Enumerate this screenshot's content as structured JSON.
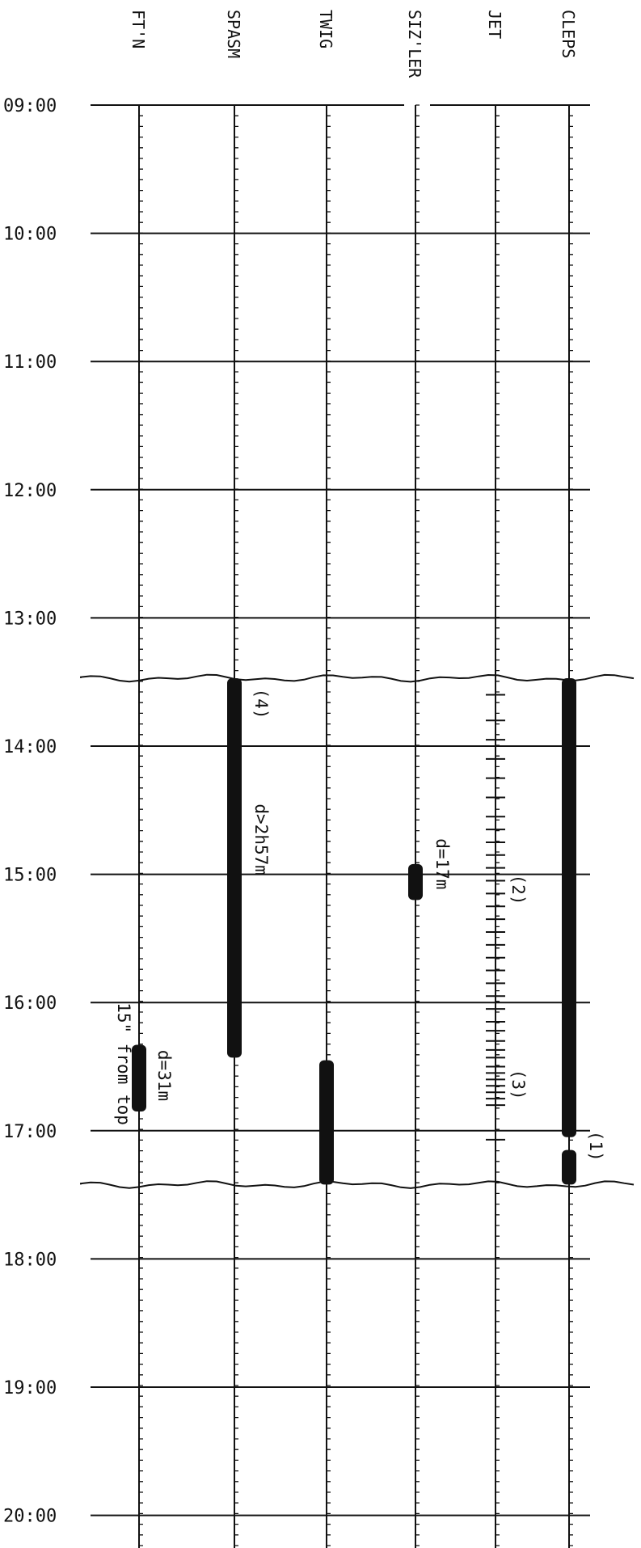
{
  "chart_data": {
    "type": "timeline",
    "time_axis": {
      "labels": [
        "09:00",
        "10:00",
        "11:00",
        "12:00",
        "13:00",
        "14:00",
        "15:00",
        "16:00",
        "17:00",
        "18:00",
        "19:00",
        "20:00"
      ],
      "start_hour": 9,
      "end_hour": 20
    },
    "columns": [
      {
        "id": "ftn",
        "label": "FT'N"
      },
      {
        "id": "spasm",
        "label": "SPASM"
      },
      {
        "id": "twig",
        "label": "TWIG"
      },
      {
        "id": "sizler",
        "label": "SIZ'LER"
      },
      {
        "id": "jet",
        "label": "JET"
      },
      {
        "id": "cleps",
        "label": "CLEPS"
      }
    ],
    "observation_window": {
      "start": 13.47,
      "end": 17.42
    },
    "events": [
      {
        "column": "ftn",
        "start": 16.33,
        "end": 16.85
      },
      {
        "column": "spasm",
        "start": 13.47,
        "end": 16.43
      },
      {
        "column": "twig",
        "start": 16.45,
        "end": 17.42
      },
      {
        "column": "sizler",
        "start": 14.92,
        "end": 15.2
      },
      {
        "column": "cleps",
        "start": 13.47,
        "end": 17.05
      },
      {
        "column": "cleps",
        "start": 17.15,
        "end": 17.42
      }
    ],
    "jet_ticks": [
      13.6,
      13.8,
      13.95,
      14.1,
      14.25,
      14.4,
      14.55,
      14.65,
      14.75,
      14.85,
      14.95,
      15.05,
      15.15,
      15.25,
      15.35,
      15.45,
      15.55,
      15.65,
      15.75,
      15.85,
      15.95,
      16.05,
      16.15,
      16.22,
      16.3,
      16.37,
      16.43,
      16.5,
      16.55,
      16.6,
      16.65,
      16.7,
      16.75,
      16.8,
      17.07
    ],
    "annotations": [
      {
        "id": "ftn-note",
        "text": "15\" from top"
      },
      {
        "id": "ftn-dur",
        "text": "d=31m"
      },
      {
        "id": "spasm-num",
        "text": "(4)"
      },
      {
        "id": "spasm-dur",
        "text": "d>2h57m"
      },
      {
        "id": "sizler-dur",
        "text": "d=17m"
      },
      {
        "id": "jet-num2",
        "text": "(2)"
      },
      {
        "id": "jet-num3",
        "text": "(3)"
      },
      {
        "id": "cleps-num1",
        "text": "(1)"
      }
    ]
  }
}
